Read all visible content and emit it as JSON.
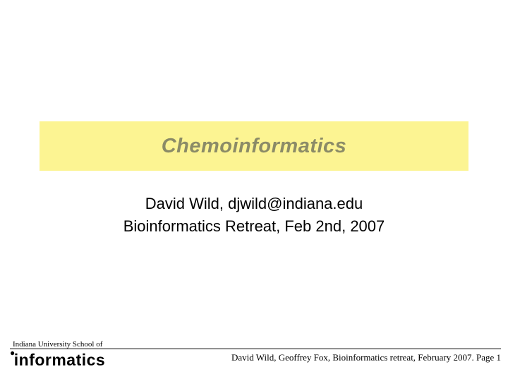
{
  "colors": {
    "title_bg": "#fcf492",
    "title_text": "#8b8b67",
    "subtitle_text": "#000000",
    "footer_text": "#000000",
    "rule": "#000000",
    "background": "#ffffff"
  },
  "title": {
    "text": "Chemoinformatics",
    "fontsize": 29
  },
  "subtitle": {
    "line1": "David Wild, djwild@indiana.edu",
    "line2": "Bioinformatics Retreat, Feb 2nd, 2007",
    "fontsize": 22
  },
  "footer": {
    "school_label": "Indiana University School of",
    "logo_text": "informatics",
    "right_text": "David Wild, Geoffrey Fox, Bioinformatics retreat, February 2007. Page 1"
  }
}
